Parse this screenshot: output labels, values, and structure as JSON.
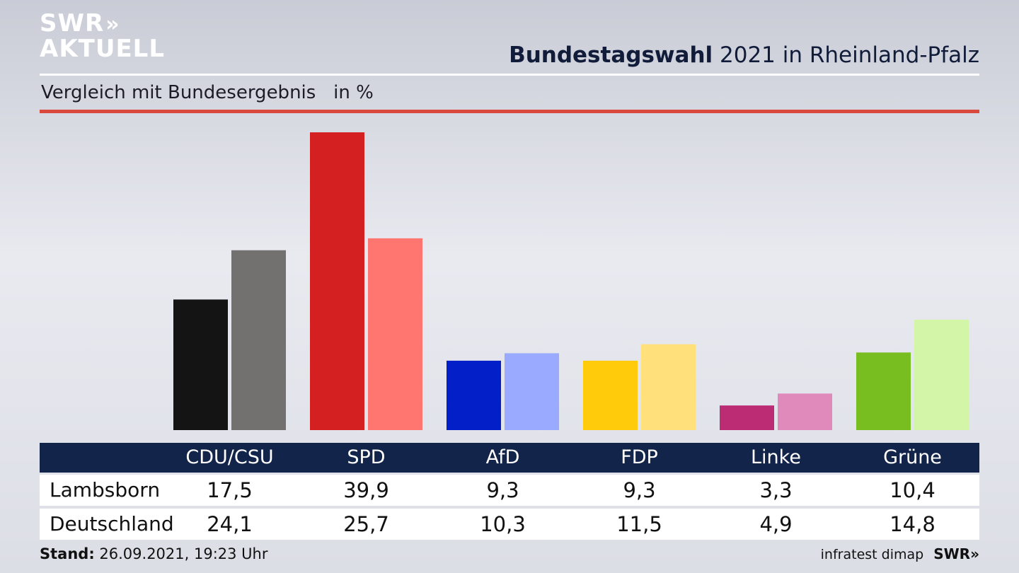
{
  "logo": {
    "line1": "SWR",
    "arrows": "»",
    "line2": "AKTUELL"
  },
  "header": {
    "title_bold": "Bundestagswahl",
    "title_rest": " 2021 in Rheinland-Pfalz"
  },
  "subtitle": "Vergleich mit Bundesergebnis   in %",
  "footer": {
    "stand_label": "Stand:",
    "stand_value": " 26.09.2021, 19:23 Uhr",
    "source": "infratest dimap",
    "brand": "SWR»"
  },
  "chart_data": {
    "type": "bar",
    "categories": [
      "CDU/CSU",
      "SPD",
      "AfD",
      "FDP",
      "Linke",
      "Grüne"
    ],
    "series": [
      {
        "name": "Lambsborn",
        "values": [
          17.5,
          39.9,
          9.3,
          9.3,
          3.3,
          10.4
        ],
        "values_text": [
          "17,5",
          "39,9",
          "9,3",
          "9,3",
          "3,3",
          "10,4"
        ]
      },
      {
        "name": "Deutschland",
        "values": [
          24.1,
          25.7,
          10.3,
          11.5,
          4.9,
          14.8
        ],
        "values_text": [
          "24,1",
          "25,7",
          "10,3",
          "11,5",
          "4,9",
          "14,8"
        ]
      }
    ],
    "colors": [
      [
        "#141414",
        "#737170"
      ],
      [
        "#d42020",
        "#ff7670"
      ],
      [
        "#0320c8",
        "#9aabff"
      ],
      [
        "#ffcb0a",
        "#ffe07a"
      ],
      [
        "#bb2c74",
        "#e08abb"
      ],
      [
        "#78be20",
        "#d2f5a8"
      ]
    ],
    "ylim": [
      0,
      40
    ],
    "grid": false,
    "legend": "none"
  }
}
